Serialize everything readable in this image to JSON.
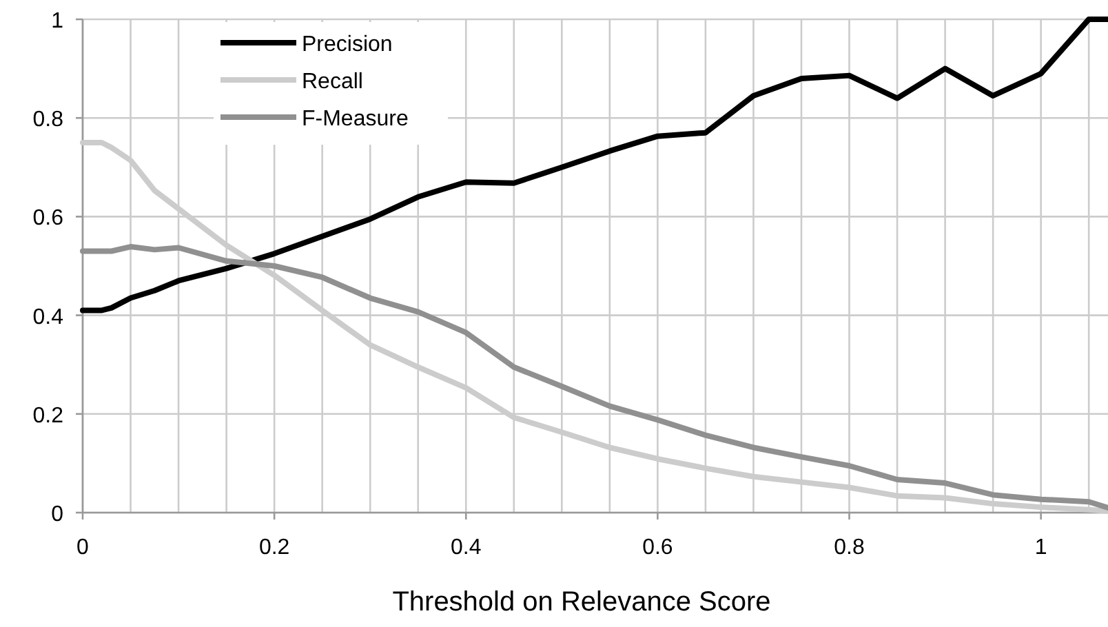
{
  "chart_data": {
    "type": "line",
    "xlabel": "Threshold on Relevance Score",
    "x": [
      0,
      0.02,
      0.03,
      0.05,
      0.075,
      0.1,
      0.15,
      0.2,
      0.25,
      0.3,
      0.35,
      0.4,
      0.45,
      0.5,
      0.55,
      0.6,
      0.65,
      0.7,
      0.75,
      0.8,
      0.85,
      0.9,
      0.95,
      1.0,
      1.05,
      1.07
    ],
    "series": [
      {
        "name": "Precision",
        "color": "#000000",
        "values": [
          0.41,
          0.41,
          0.415,
          0.435,
          0.45,
          0.47,
          0.495,
          0.525,
          0.56,
          0.595,
          0.64,
          0.67,
          0.668,
          0.7,
          0.733,
          0.763,
          0.77,
          0.845,
          0.88,
          0.886,
          0.84,
          0.9,
          0.845,
          0.89,
          1.0,
          1.0
        ]
      },
      {
        "name": "Recall",
        "color": "#cccccc",
        "values": [
          0.75,
          0.75,
          0.74,
          0.714,
          0.653,
          0.616,
          0.542,
          0.481,
          0.41,
          0.34,
          0.295,
          0.253,
          0.193,
          0.163,
          0.132,
          0.109,
          0.09,
          0.073,
          0.062,
          0.051,
          0.034,
          0.03,
          0.018,
          0.011,
          0.006,
          0.003
        ]
      },
      {
        "name": "F-Measure",
        "color": "#909090",
        "values": [
          0.53,
          0.53,
          0.53,
          0.539,
          0.533,
          0.537,
          0.51,
          0.5,
          0.477,
          0.435,
          0.407,
          0.365,
          0.295,
          0.256,
          0.216,
          0.188,
          0.157,
          0.132,
          0.113,
          0.095,
          0.067,
          0.06,
          0.036,
          0.027,
          0.022,
          0.01
        ]
      }
    ],
    "xlim": [
      0,
      1.07
    ],
    "xticks": [
      0,
      {
        "value": 0.05,
        "label": null
      },
      {
        "value": 0.1,
        "label": null
      },
      {
        "value": 0.15,
        "label": null
      },
      0.2,
      {
        "value": 0.25,
        "label": null
      },
      {
        "value": 0.3,
        "label": null
      },
      {
        "value": 0.35,
        "label": null
      },
      0.4,
      {
        "value": 0.45,
        "label": null
      },
      {
        "value": 0.5,
        "label": null
      },
      {
        "value": 0.55,
        "label": null
      },
      0.6,
      {
        "value": 0.65,
        "label": null
      },
      {
        "value": 0.7,
        "label": null
      },
      {
        "value": 0.75,
        "label": null
      },
      0.8,
      {
        "value": 0.85,
        "label": null
      },
      {
        "value": 0.9,
        "label": null
      },
      {
        "value": 0.95,
        "label": null
      },
      1,
      {
        "value": 1.05,
        "label": null
      }
    ],
    "ylim": [
      0,
      1
    ],
    "yticks": [
      0,
      0.2,
      0.4,
      0.6,
      0.8,
      1
    ],
    "grid": true,
    "legend": "top left",
    "marker": "none",
    "line_style": "solid"
  }
}
